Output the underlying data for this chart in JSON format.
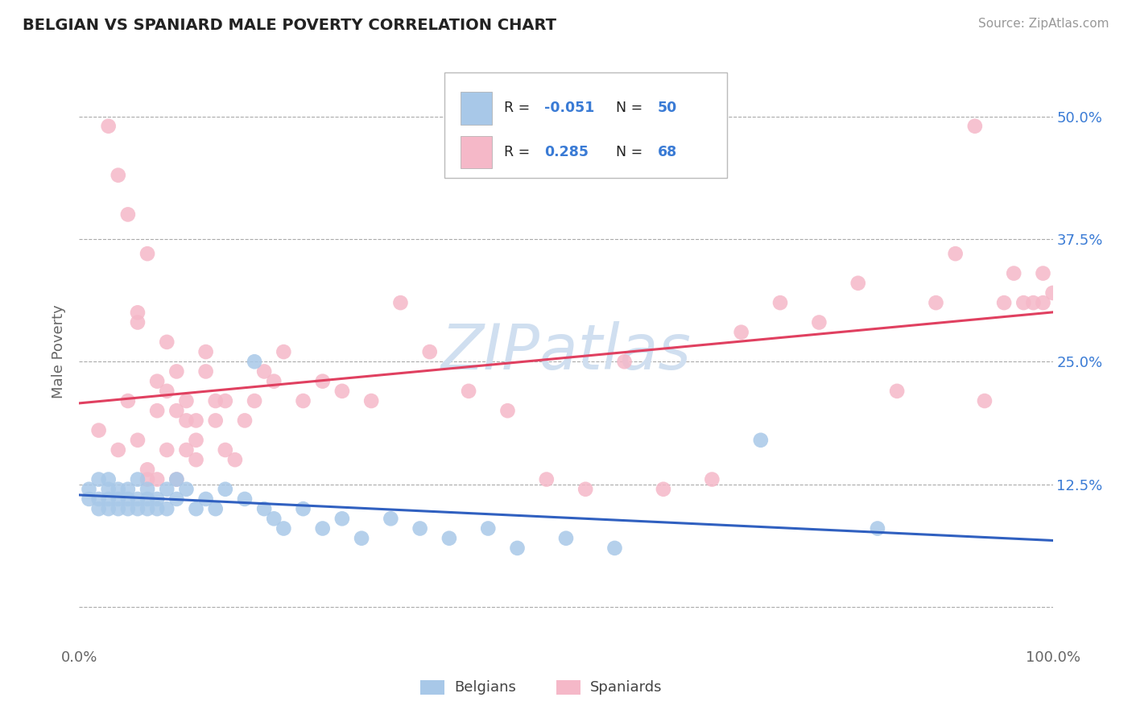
{
  "title": "BELGIAN VS SPANIARD MALE POVERTY CORRELATION CHART",
  "source": "Source: ZipAtlas.com",
  "ylabel": "Male Poverty",
  "xlim": [
    0,
    1.0
  ],
  "ylim": [
    -0.04,
    0.56
  ],
  "yticks": [
    0.0,
    0.125,
    0.25,
    0.375,
    0.5
  ],
  "yticklabels": [
    "",
    "12.5%",
    "25.0%",
    "37.5%",
    "50.0%"
  ],
  "belgian_R": -0.051,
  "belgian_N": 50,
  "spaniard_R": 0.285,
  "spaniard_N": 68,
  "belgian_color": "#a8c8e8",
  "spaniard_color": "#f5b8c8",
  "trendline_belgian_color": "#3060c0",
  "trendline_spaniard_color": "#e04060",
  "watermark": "ZIPatlas",
  "watermark_color": "#d0dff0",
  "background_color": "#ffffff",
  "belgian_x": [
    0.01,
    0.01,
    0.02,
    0.02,
    0.02,
    0.03,
    0.03,
    0.03,
    0.03,
    0.04,
    0.04,
    0.04,
    0.05,
    0.05,
    0.05,
    0.06,
    0.06,
    0.06,
    0.07,
    0.07,
    0.07,
    0.08,
    0.08,
    0.09,
    0.09,
    0.1,
    0.1,
    0.11,
    0.12,
    0.13,
    0.14,
    0.15,
    0.17,
    0.18,
    0.19,
    0.2,
    0.21,
    0.23,
    0.25,
    0.27,
    0.29,
    0.32,
    0.35,
    0.38,
    0.42,
    0.45,
    0.5,
    0.55,
    0.7,
    0.82
  ],
  "belgian_y": [
    0.11,
    0.12,
    0.1,
    0.11,
    0.13,
    0.1,
    0.11,
    0.12,
    0.13,
    0.1,
    0.12,
    0.11,
    0.1,
    0.12,
    0.11,
    0.1,
    0.11,
    0.13,
    0.1,
    0.11,
    0.12,
    0.11,
    0.1,
    0.12,
    0.1,
    0.11,
    0.13,
    0.12,
    0.1,
    0.11,
    0.1,
    0.12,
    0.11,
    0.25,
    0.1,
    0.09,
    0.08,
    0.1,
    0.08,
    0.09,
    0.07,
    0.09,
    0.08,
    0.07,
    0.08,
    0.06,
    0.07,
    0.06,
    0.17,
    0.08
  ],
  "spaniard_x": [
    0.02,
    0.03,
    0.04,
    0.04,
    0.05,
    0.05,
    0.06,
    0.06,
    0.06,
    0.07,
    0.07,
    0.07,
    0.08,
    0.08,
    0.08,
    0.09,
    0.09,
    0.09,
    0.1,
    0.1,
    0.1,
    0.11,
    0.11,
    0.11,
    0.12,
    0.12,
    0.12,
    0.13,
    0.13,
    0.14,
    0.14,
    0.15,
    0.15,
    0.16,
    0.17,
    0.18,
    0.19,
    0.2,
    0.21,
    0.23,
    0.25,
    0.27,
    0.3,
    0.33,
    0.36,
    0.4,
    0.44,
    0.48,
    0.52,
    0.56,
    0.6,
    0.65,
    0.68,
    0.72,
    0.76,
    0.8,
    0.84,
    0.88,
    0.9,
    0.92,
    0.93,
    0.95,
    0.96,
    0.97,
    0.98,
    0.99,
    0.99,
    1.0
  ],
  "spaniard_y": [
    0.18,
    0.49,
    0.44,
    0.16,
    0.21,
    0.4,
    0.3,
    0.17,
    0.29,
    0.36,
    0.13,
    0.14,
    0.23,
    0.2,
    0.13,
    0.22,
    0.16,
    0.27,
    0.13,
    0.2,
    0.24,
    0.16,
    0.19,
    0.21,
    0.17,
    0.15,
    0.19,
    0.24,
    0.26,
    0.19,
    0.21,
    0.16,
    0.21,
    0.15,
    0.19,
    0.21,
    0.24,
    0.23,
    0.26,
    0.21,
    0.23,
    0.22,
    0.21,
    0.31,
    0.26,
    0.22,
    0.2,
    0.13,
    0.12,
    0.25,
    0.12,
    0.13,
    0.28,
    0.31,
    0.29,
    0.33,
    0.22,
    0.31,
    0.36,
    0.49,
    0.21,
    0.31,
    0.34,
    0.31,
    0.31,
    0.34,
    0.31,
    0.32
  ]
}
